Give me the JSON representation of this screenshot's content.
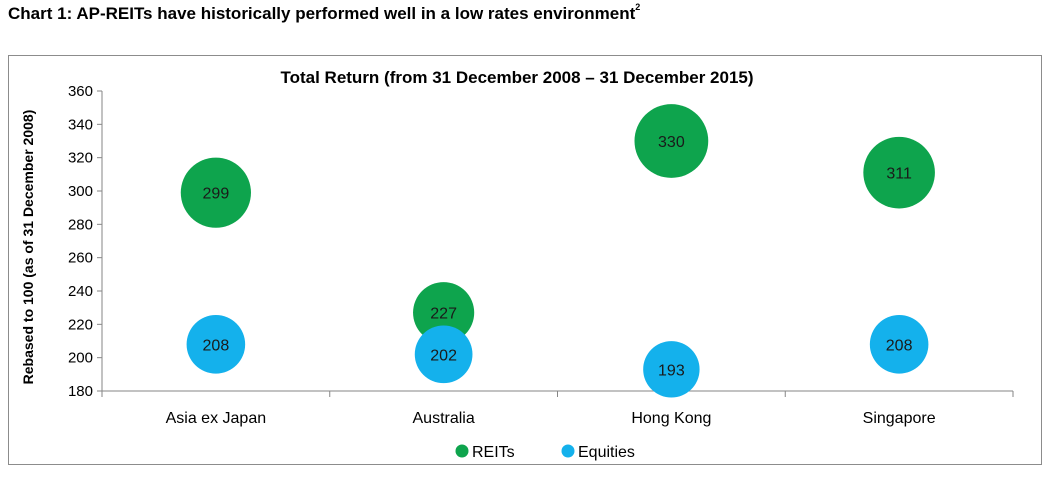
{
  "page_heading": {
    "text": "Chart 1: AP-REITs have historically performed well in a low rates environment",
    "footnote": "2"
  },
  "chart_data": {
    "type": "scatter",
    "title": "Total Return (from 31 December 2008 – 31 December 2015)",
    "xlabel": "",
    "ylabel": "Rebased to 100 (as of 31 December 2008)",
    "ylim": [
      180,
      360
    ],
    "yticks": [
      180,
      200,
      220,
      240,
      260,
      280,
      300,
      320,
      340,
      360
    ],
    "categories": [
      "Asia ex Japan",
      "Australia",
      "Hong Kong",
      "Singapore"
    ],
    "series": [
      {
        "name": "REITs",
        "color": "#0ea44d",
        "values": [
          299,
          227,
          330,
          311
        ]
      },
      {
        "name": "Equities",
        "color": "#14b1ec",
        "values": [
          208,
          202,
          193,
          208
        ]
      }
    ],
    "data_labels": true,
    "grid": false,
    "legend": "bottom"
  }
}
